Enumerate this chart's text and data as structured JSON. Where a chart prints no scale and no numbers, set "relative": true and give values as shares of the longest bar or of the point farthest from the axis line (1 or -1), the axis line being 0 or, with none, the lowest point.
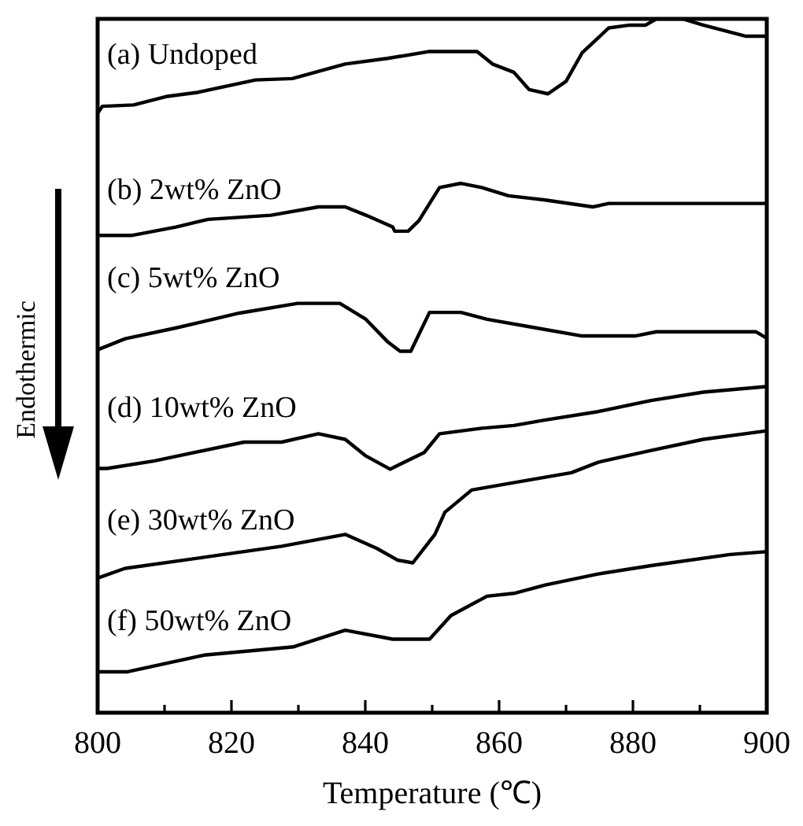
{
  "chart_data": {
    "type": "line",
    "relative": true,
    "xlabel": "Temperature (℃)",
    "ylabel": "Endothermic",
    "xlim": [
      800,
      900
    ],
    "xticks": [
      800,
      {
        "value": 810,
        "label": null
      },
      820,
      {
        "value": 830,
        "label": null
      },
      840,
      {
        "value": 850,
        "label": null
      },
      860,
      {
        "value": 870,
        "label": null
      },
      880,
      {
        "value": 890,
        "label": null
      },
      900
    ],
    "grid": false,
    "legend": false,
    "marker": "none",
    "line_style": "solid",
    "series": [
      {
        "name": "(a) Undoped",
        "color": "#000000",
        "x": [
          800,
          800.7,
          805.4,
          810.2,
          814.9,
          823.6,
          829.1,
          837,
          843.3,
          849.6,
          856.7,
          859,
          862.2,
          864.5,
          867.3,
          870,
          872.4,
          876.4,
          879.5,
          881.9,
          883.5,
          887.4,
          890.5,
          896.9,
          899.8
        ],
        "values": [
          0.864,
          0.874,
          0.876,
          0.888,
          0.894,
          0.912,
          0.914,
          0.935,
          0.943,
          0.953,
          0.953,
          0.935,
          0.923,
          0.898,
          0.892,
          0.91,
          0.951,
          0.987,
          0.991,
          0.991,
          1,
          1,
          0.991,
          0.975,
          0.975
        ]
      },
      {
        "name": "(b) 2wt% ZnO",
        "color": "#000000",
        "x": [
          800,
          805.2,
          811.7,
          816.5,
          825.9,
          833,
          837,
          840.1,
          844.1,
          844.4,
          846.4,
          848,
          851.1,
          854.3,
          857.4,
          861.4,
          866.9,
          874,
          876.4,
          899.8
        ],
        "values": [
          0.688,
          0.688,
          0.7,
          0.711,
          0.717,
          0.729,
          0.729,
          0.717,
          0.7,
          0.694,
          0.694,
          0.709,
          0.757,
          0.763,
          0.757,
          0.745,
          0.739,
          0.729,
          0.734,
          0.734
        ]
      },
      {
        "name": "(c) 5wt% ZnO",
        "color": "#000000",
        "x": [
          800,
          804.1,
          811.9,
          821.2,
          829.9,
          836.2,
          840.1,
          843.3,
          845.2,
          846.8,
          849.6,
          854.3,
          858.2,
          865.3,
          872.4,
          880.3,
          883.5,
          898.4,
          899.8
        ],
        "values": [
          0.523,
          0.539,
          0.555,
          0.576,
          0.59,
          0.59,
          0.567,
          0.535,
          0.521,
          0.521,
          0.577,
          0.577,
          0.567,
          0.555,
          0.543,
          0.543,
          0.549,
          0.549,
          0.541
        ]
      },
      {
        "name": "(d) 10wt% ZnO",
        "color": "#000000",
        "x": [
          800,
          801.4,
          808.5,
          821.9,
          827.5,
          833,
          837,
          840.1,
          843.7,
          848.8,
          851.1,
          857.4,
          862.2,
          866.9,
          874.8,
          882.7,
          890.5,
          899.8
        ],
        "values": [
          0.352,
          0.352,
          0.363,
          0.39,
          0.39,
          0.402,
          0.394,
          0.37,
          0.351,
          0.375,
          0.402,
          0.41,
          0.414,
          0.422,
          0.434,
          0.45,
          0.462,
          0.47
        ]
      },
      {
        "name": "(e) 30wt% ZnO",
        "color": "#000000",
        "x": [
          800,
          804.1,
          815.9,
          827.5,
          837,
          841.7,
          844.8,
          847.1,
          850.4,
          851.9,
          855.9,
          860.6,
          870.8,
          874.8,
          882.7,
          890.5,
          899.8
        ],
        "values": [
          0.194,
          0.208,
          0.224,
          0.24,
          0.257,
          0.237,
          0.22,
          0.216,
          0.257,
          0.289,
          0.321,
          0.329,
          0.346,
          0.361,
          0.378,
          0.394,
          0.406
        ]
      },
      {
        "name": "(f) 50wt% ZnO",
        "color": "#000000",
        "x": [
          800,
          804.5,
          815.9,
          829.3,
          837,
          844.1,
          849.6,
          852.8,
          858.2,
          862.2,
          866.9,
          874.8,
          882.7,
          894.5,
          899.8
        ],
        "values": [
          0.059,
          0.059,
          0.083,
          0.095,
          0.119,
          0.106,
          0.106,
          0.14,
          0.168,
          0.172,
          0.184,
          0.2,
          0.212,
          0.228,
          0.232
        ]
      }
    ]
  }
}
